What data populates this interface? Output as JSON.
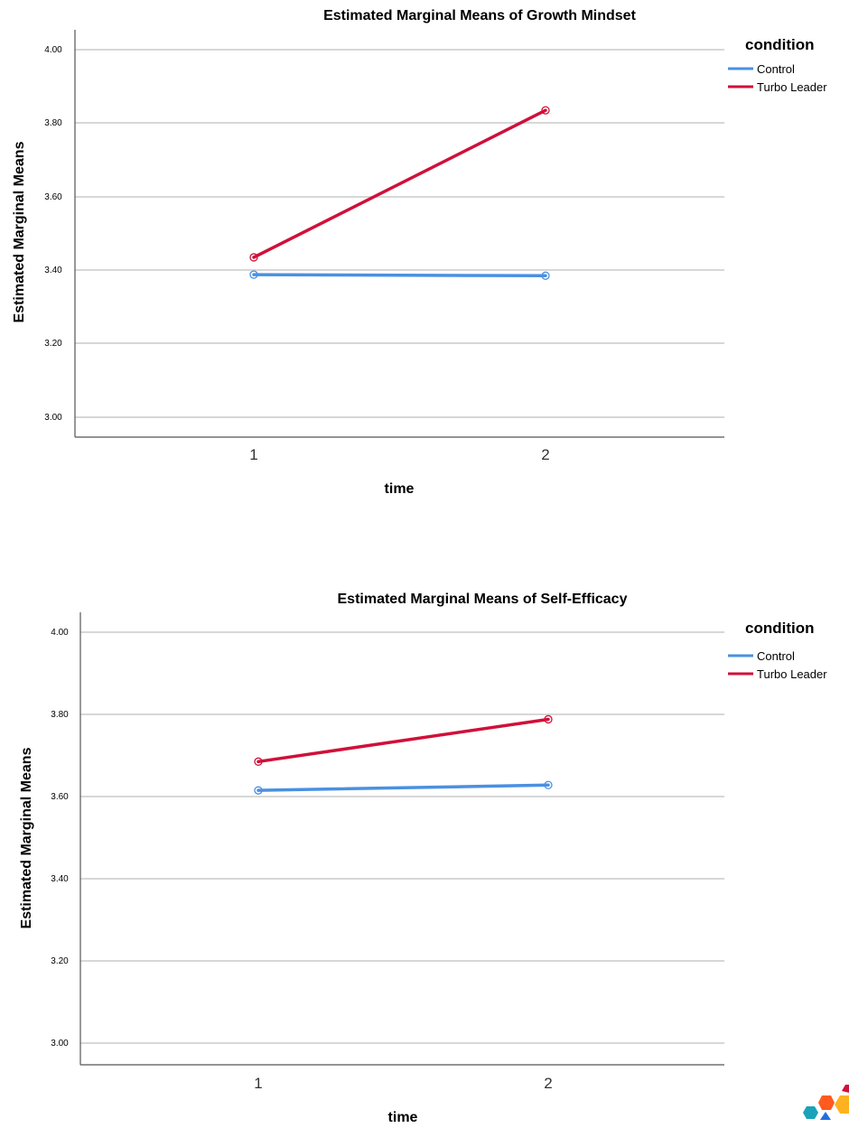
{
  "chart_data": [
    {
      "type": "line",
      "title": "Estimated Marginal Means of Growth Mindset",
      "xlabel": "time",
      "ylabel": "Estimated Marginal Means",
      "categories": [
        "1",
        "2"
      ],
      "ylim": [
        2.95,
        4.05
      ],
      "yticks": [
        "3.00",
        "3.20",
        "3.40",
        "3.60",
        "3.80",
        "4.00"
      ],
      "grid": true,
      "legend": {
        "title": "condition",
        "placement": "right"
      },
      "series": [
        {
          "name": "Control",
          "color": "#4a90e2",
          "values": [
            3.388,
            3.385
          ]
        },
        {
          "name": "Turbo Leader",
          "color": "#d0103a",
          "values": [
            3.435,
            3.835
          ]
        }
      ]
    },
    {
      "type": "line",
      "title": "Estimated Marginal Means of Self-Efficacy",
      "xlabel": "time",
      "ylabel": "Estimated Marginal Means",
      "categories": [
        "1",
        "2"
      ],
      "ylim": [
        2.95,
        4.05
      ],
      "yticks": [
        "3.00",
        "3.20",
        "3.40",
        "3.60",
        "3.80",
        "4.00"
      ],
      "grid": true,
      "legend": {
        "title": "condition",
        "placement": "right"
      },
      "series": [
        {
          "name": "Control",
          "color": "#4a90e2",
          "values": [
            3.615,
            3.628
          ]
        },
        {
          "name": "Turbo Leader",
          "color": "#d0103a",
          "values": [
            3.685,
            3.788
          ]
        }
      ]
    }
  ],
  "logo": {
    "icon": "hexagon-logo-icon",
    "colors": [
      "#1aa3b8",
      "#ff5a1f",
      "#1f6fe0"
    ]
  }
}
